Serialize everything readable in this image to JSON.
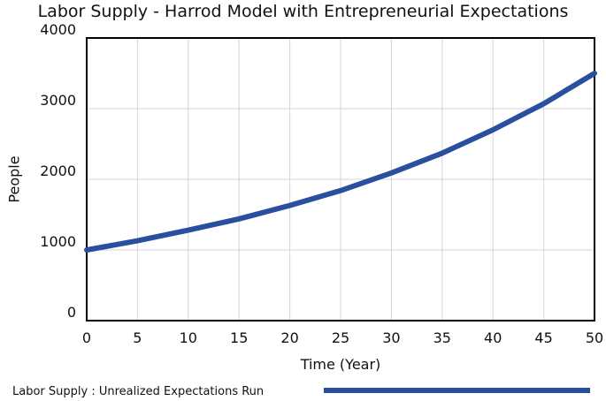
{
  "chart_data": {
    "type": "line",
    "title": "Labor Supply - Harrod Model with Entrepreneurial Expectations",
    "xlabel": "Time (Year)",
    "ylabel": "People",
    "xlim": [
      0,
      50
    ],
    "ylim": [
      0,
      4000
    ],
    "xticks": [
      0,
      5,
      10,
      15,
      20,
      25,
      30,
      35,
      40,
      45,
      50
    ],
    "yticks": [
      0,
      1000,
      2000,
      3000,
      4000
    ],
    "grid": true,
    "legend_position": "bottom",
    "series": [
      {
        "name": "Labor Supply : Unrealized Expectations Run",
        "color": "#2a4f9e",
        "x": [
          0,
          5,
          10,
          15,
          20,
          25,
          30,
          35,
          40,
          45,
          50
        ],
        "y": [
          1000,
          1130,
          1280,
          1440,
          1630,
          1840,
          2090,
          2370,
          2700,
          3070,
          3500
        ]
      }
    ]
  }
}
